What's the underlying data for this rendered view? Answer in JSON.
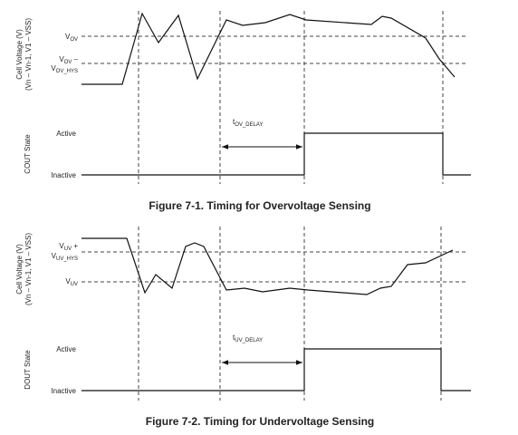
{
  "figure1": {
    "y_label": [
      "Cell Voltage (V)",
      "(Vn – Vn-1, V1 – VSS)"
    ],
    "threshold_high": {
      "base": "V",
      "sub": "OV"
    },
    "threshold_low": {
      "base": "V",
      "sub": "OV",
      "suffix": " –",
      "base2": "V",
      "sub2": "OV_HYS"
    },
    "state_label": "COUT State",
    "active": "Active",
    "inactive": "Inactive",
    "delay": {
      "base": "t",
      "sub": "OV_DELAY"
    },
    "caption": "Figure 7-1. Timing for Overvoltage Sensing"
  },
  "figure2": {
    "y_label": [
      "Cell Voltage (V)",
      "(Vn – Vn-1, V1 – VSS)"
    ],
    "threshold_high": {
      "base": "V",
      "sub": "UV",
      "suffix": " +",
      "base2": "V",
      "sub2": "UV_HYS"
    },
    "threshold_low": {
      "base": "V",
      "sub": "UV"
    },
    "state_label": "DOUT State",
    "active": "Active",
    "inactive": "Inactive",
    "delay": {
      "base": "t",
      "sub": "UV_DELAY"
    },
    "caption": "Figure 7-2. Timing for Undervoltage Sensing"
  }
}
